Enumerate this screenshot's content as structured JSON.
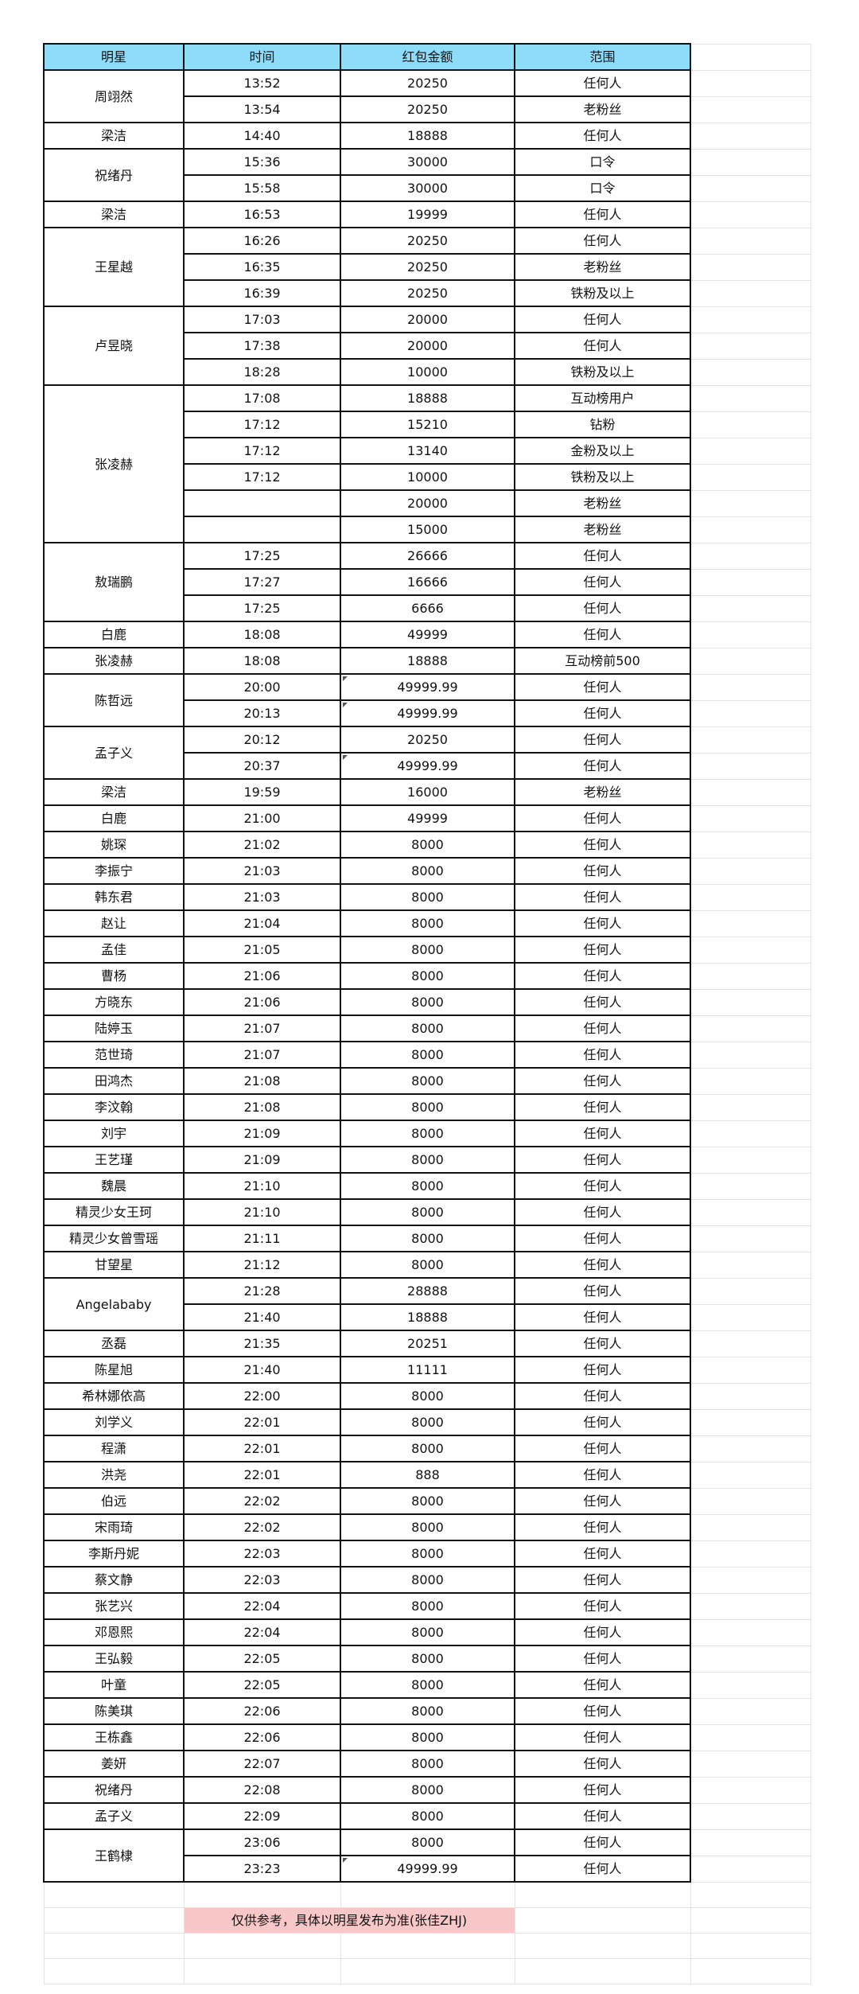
{
  "header": {
    "name": "明星",
    "time": "时间",
    "amount": "红包金额",
    "scope": "范围"
  },
  "colors": {
    "header_bg": "#8fdcf8",
    "note_bg": "#f8c8c8"
  },
  "groups": [
    {
      "name": "周翊然",
      "entries": [
        {
          "time": "13:52",
          "amount": "20250",
          "scope": "任何人"
        },
        {
          "time": "13:54",
          "amount": "20250",
          "scope": "老粉丝"
        }
      ]
    },
    {
      "name": "梁洁",
      "entries": [
        {
          "time": "14:40",
          "amount": "18888",
          "scope": "任何人"
        }
      ]
    },
    {
      "name": "祝绪丹",
      "entries": [
        {
          "time": "15:36",
          "amount": "30000",
          "scope": "口令"
        },
        {
          "time": "15:58",
          "amount": "30000",
          "scope": "口令"
        }
      ]
    },
    {
      "name": "梁洁",
      "entries": [
        {
          "time": "16:53",
          "amount": "19999",
          "scope": "任何人"
        }
      ]
    },
    {
      "name": "王星越",
      "entries": [
        {
          "time": "16:26",
          "amount": "20250",
          "scope": "任何人"
        },
        {
          "time": "16:35",
          "amount": "20250",
          "scope": "老粉丝"
        },
        {
          "time": "16:39",
          "amount": "20250",
          "scope": "铁粉及以上"
        }
      ]
    },
    {
      "name": "卢昱晓",
      "entries": [
        {
          "time": "17:03",
          "amount": "20000",
          "scope": "任何人"
        },
        {
          "time": "17:38",
          "amount": "20000",
          "scope": "任何人"
        },
        {
          "time": "18:28",
          "amount": "10000",
          "scope": "铁粉及以上"
        }
      ]
    },
    {
      "name": "张凌赫",
      "entries": [
        {
          "time": "17:08",
          "amount": "18888",
          "scope": "互动榜用户"
        },
        {
          "time": "17:12",
          "amount": "15210",
          "scope": "钻粉"
        },
        {
          "time": "17:12",
          "amount": "13140",
          "scope": "金粉及以上"
        },
        {
          "time": "17:12",
          "amount": "10000",
          "scope": "铁粉及以上"
        },
        {
          "time": "",
          "amount": "20000",
          "scope": "老粉丝"
        },
        {
          "time": "",
          "amount": "15000",
          "scope": "老粉丝"
        }
      ]
    },
    {
      "name": "敖瑞鹏",
      "entries": [
        {
          "time": "17:25",
          "amount": "26666",
          "scope": "任何人"
        },
        {
          "time": "17:27",
          "amount": "16666",
          "scope": "任何人"
        },
        {
          "time": "17:25",
          "amount": "6666",
          "scope": "任何人"
        }
      ]
    },
    {
      "name": "白鹿",
      "entries": [
        {
          "time": "18:08",
          "amount": "49999",
          "scope": "任何人"
        }
      ]
    },
    {
      "name": "张凌赫",
      "entries": [
        {
          "time": "18:08",
          "amount": "18888",
          "scope": "互动榜前500"
        }
      ]
    },
    {
      "name": "陈哲远",
      "entries": [
        {
          "time": "20:00",
          "amount": "49999.99",
          "scope": "任何人",
          "marker": true
        },
        {
          "time": "20:13",
          "amount": "49999.99",
          "scope": "任何人",
          "marker": true
        }
      ]
    },
    {
      "name": "孟子义",
      "entries": [
        {
          "time": "20:12",
          "amount": "20250",
          "scope": "任何人"
        },
        {
          "time": "20:37",
          "amount": "49999.99",
          "scope": "任何人",
          "marker": true
        }
      ]
    },
    {
      "name": "梁洁",
      "entries": [
        {
          "time": "19:59",
          "amount": "16000",
          "scope": "老粉丝"
        }
      ]
    },
    {
      "name": "白鹿",
      "entries": [
        {
          "time": "21:00",
          "amount": "49999",
          "scope": "任何人"
        }
      ]
    },
    {
      "name": "姚琛",
      "entries": [
        {
          "time": "21:02",
          "amount": "8000",
          "scope": "任何人"
        }
      ]
    },
    {
      "name": "李振宁",
      "entries": [
        {
          "time": "21:03",
          "amount": "8000",
          "scope": "任何人"
        }
      ]
    },
    {
      "name": "韩东君",
      "entries": [
        {
          "time": "21:03",
          "amount": "8000",
          "scope": "任何人"
        }
      ]
    },
    {
      "name": "赵让",
      "entries": [
        {
          "time": "21:04",
          "amount": "8000",
          "scope": "任何人"
        }
      ]
    },
    {
      "name": "孟佳",
      "entries": [
        {
          "time": "21:05",
          "amount": "8000",
          "scope": "任何人"
        }
      ]
    },
    {
      "name": "曹杨",
      "entries": [
        {
          "time": "21:06",
          "amount": "8000",
          "scope": "任何人"
        }
      ]
    },
    {
      "name": "方晓东",
      "entries": [
        {
          "time": "21:06",
          "amount": "8000",
          "scope": "任何人"
        }
      ]
    },
    {
      "name": "陆婷玉",
      "entries": [
        {
          "time": "21:07",
          "amount": "8000",
          "scope": "任何人"
        }
      ]
    },
    {
      "name": "范世琦",
      "entries": [
        {
          "time": "21:07",
          "amount": "8000",
          "scope": "任何人"
        }
      ]
    },
    {
      "name": "田鸿杰",
      "entries": [
        {
          "time": "21:08",
          "amount": "8000",
          "scope": "任何人"
        }
      ]
    },
    {
      "name": "李汶翰",
      "entries": [
        {
          "time": "21:08",
          "amount": "8000",
          "scope": "任何人"
        }
      ]
    },
    {
      "name": "刘宇",
      "entries": [
        {
          "time": "21:09",
          "amount": "8000",
          "scope": "任何人"
        }
      ]
    },
    {
      "name": "王艺瑾",
      "entries": [
        {
          "time": "21:09",
          "amount": "8000",
          "scope": "任何人"
        }
      ]
    },
    {
      "name": "魏晨",
      "entries": [
        {
          "time": "21:10",
          "amount": "8000",
          "scope": "任何人"
        }
      ]
    },
    {
      "name": "精灵少女王珂",
      "entries": [
        {
          "time": "21:10",
          "amount": "8000",
          "scope": "任何人"
        }
      ]
    },
    {
      "name": "精灵少女曾雪瑶",
      "entries": [
        {
          "time": "21:11",
          "amount": "8000",
          "scope": "任何人"
        }
      ]
    },
    {
      "name": "甘望星",
      "entries": [
        {
          "time": "21:12",
          "amount": "8000",
          "scope": "任何人"
        }
      ]
    },
    {
      "name": "Angelababy",
      "entries": [
        {
          "time": "21:28",
          "amount": "28888",
          "scope": "任何人"
        },
        {
          "time": "21:40",
          "amount": "18888",
          "scope": "任何人"
        }
      ]
    },
    {
      "name": "丞磊",
      "entries": [
        {
          "time": "21:35",
          "amount": "20251",
          "scope": "任何人"
        }
      ]
    },
    {
      "name": "陈星旭",
      "entries": [
        {
          "time": "21:40",
          "amount": "11111",
          "scope": "任何人"
        }
      ]
    },
    {
      "name": "希林娜依高",
      "entries": [
        {
          "time": "22:00",
          "amount": "8000",
          "scope": "任何人"
        }
      ]
    },
    {
      "name": "刘学义",
      "entries": [
        {
          "time": "22:01",
          "amount": "8000",
          "scope": "任何人"
        }
      ]
    },
    {
      "name": "程潇",
      "entries": [
        {
          "time": "22:01",
          "amount": "8000",
          "scope": "任何人"
        }
      ]
    },
    {
      "name": "洪尧",
      "entries": [
        {
          "time": "22:01",
          "amount": "888",
          "scope": "任何人"
        }
      ]
    },
    {
      "name": "伯远",
      "entries": [
        {
          "time": "22:02",
          "amount": "8000",
          "scope": "任何人"
        }
      ]
    },
    {
      "name": "宋雨琦",
      "entries": [
        {
          "time": "22:02",
          "amount": "8000",
          "scope": "任何人"
        }
      ]
    },
    {
      "name": "李斯丹妮",
      "entries": [
        {
          "time": "22:03",
          "amount": "8000",
          "scope": "任何人"
        }
      ]
    },
    {
      "name": "蔡文静",
      "entries": [
        {
          "time": "22:03",
          "amount": "8000",
          "scope": "任何人"
        }
      ]
    },
    {
      "name": "张艺兴",
      "entries": [
        {
          "time": "22:04",
          "amount": "8000",
          "scope": "任何人"
        }
      ]
    },
    {
      "name": "邓恩熙",
      "entries": [
        {
          "time": "22:04",
          "amount": "8000",
          "scope": "任何人"
        }
      ]
    },
    {
      "name": "王弘毅",
      "entries": [
        {
          "time": "22:05",
          "amount": "8000",
          "scope": "任何人"
        }
      ]
    },
    {
      "name": "叶童",
      "entries": [
        {
          "time": "22:05",
          "amount": "8000",
          "scope": "任何人"
        }
      ]
    },
    {
      "name": "陈美琪",
      "entries": [
        {
          "time": "22:06",
          "amount": "8000",
          "scope": "任何人"
        }
      ]
    },
    {
      "name": "王栋鑫",
      "entries": [
        {
          "time": "22:06",
          "amount": "8000",
          "scope": "任何人"
        }
      ]
    },
    {
      "name": "姜妍",
      "entries": [
        {
          "time": "22:07",
          "amount": "8000",
          "scope": "任何人"
        }
      ]
    },
    {
      "name": "祝绪丹",
      "entries": [
        {
          "time": "22:08",
          "amount": "8000",
          "scope": "任何人"
        }
      ]
    },
    {
      "name": "孟子义",
      "entries": [
        {
          "time": "22:09",
          "amount": "8000",
          "scope": "任何人"
        }
      ]
    },
    {
      "name": "王鹤棣",
      "entries": [
        {
          "time": "23:06",
          "amount": "8000",
          "scope": "任何人"
        },
        {
          "time": "23:23",
          "amount": "49999.99",
          "scope": "任何人",
          "marker": true
        }
      ]
    }
  ],
  "footer": {
    "note": "仅供参考，具体以明星发布为准(张佳ZHJ)"
  }
}
